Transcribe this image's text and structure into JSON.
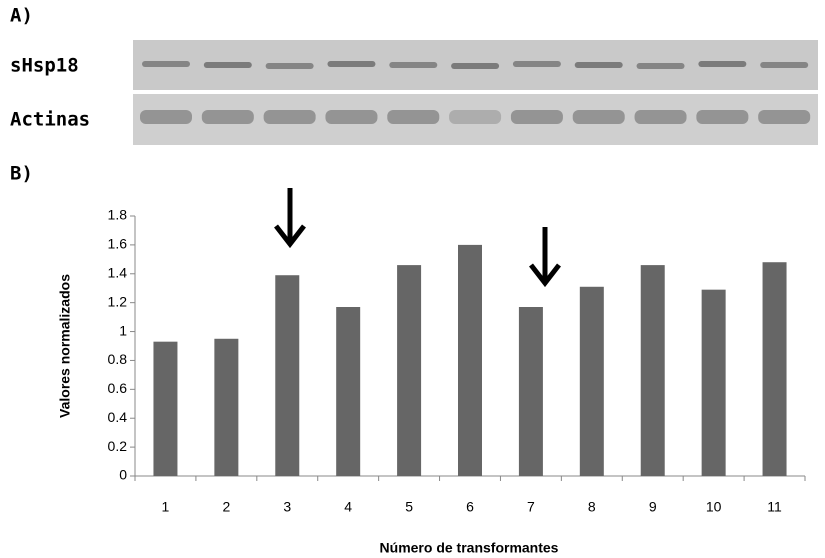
{
  "panel_a": {
    "label": "A)",
    "rows": [
      "sHsp18",
      "Actinas"
    ]
  },
  "panel_b": {
    "label": "B)"
  },
  "chart_data": {
    "type": "bar",
    "x_label": "Número de transformantes",
    "y_label": "Valores normalizados",
    "categories": [
      "1",
      "2",
      "3",
      "4",
      "5",
      "6",
      "7",
      "8",
      "9",
      "10",
      "11"
    ],
    "values": [
      0.93,
      0.95,
      1.39,
      1.17,
      1.46,
      1.6,
      1.17,
      1.31,
      1.46,
      1.29,
      1.48
    ],
    "color": "#666666",
    "ylim": [
      0,
      1.8
    ],
    "yticks": [
      0,
      0.2,
      0.4,
      0.6,
      0.8,
      1,
      1.2,
      1.4,
      1.6,
      1.8
    ],
    "grid": false
  }
}
